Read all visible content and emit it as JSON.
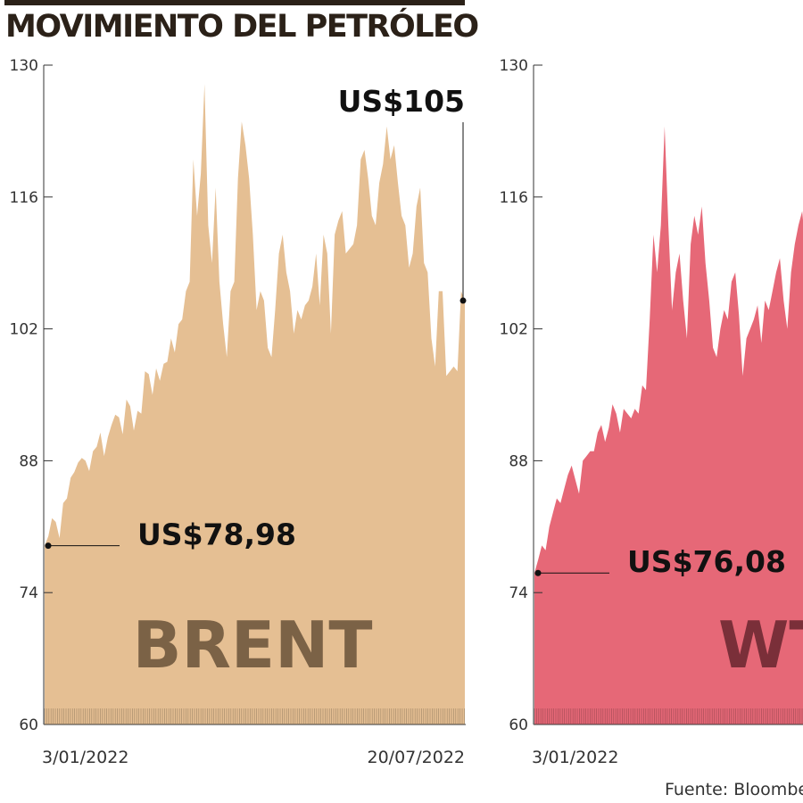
{
  "title": "MOVIMIENTO DEL PETRÓLEO",
  "source": "Fuente: Bloomberg",
  "chart_data": [
    {
      "type": "area",
      "name": "BRENT",
      "color": "#e5bf93",
      "label_color": "#7b6246",
      "ylim": [
        60,
        130
      ],
      "yticks": [
        "60",
        "74",
        "88",
        "102",
        "116",
        "130"
      ],
      "x_labels": [
        "3/01/2022",
        "20/07/2022"
      ],
      "callouts": [
        {
          "text": "US$78,98",
          "value": 78.98,
          "at": "start"
        },
        {
          "text": "US$105",
          "value": 105,
          "at": "end"
        }
      ],
      "values": [
        78.98,
        80.0,
        81.9,
        81.5,
        79.8,
        83.5,
        84.0,
        86.2,
        86.8,
        87.8,
        88.3,
        88.0,
        86.9,
        89.0,
        89.5,
        91.0,
        88.5,
        90.5,
        91.8,
        92.9,
        92.6,
        90.8,
        94.5,
        93.8,
        91.2,
        93.3,
        93.0,
        97.5,
        97.2,
        95.0,
        97.8,
        96.5,
        98.3,
        98.5,
        101.0,
        99.5,
        102.5,
        103.0,
        106.0,
        107.0,
        120.0,
        114.0,
        118.5,
        128.0,
        113.0,
        109.0,
        117.0,
        107.0,
        102.5,
        99.0,
        106.0,
        107.0,
        118.0,
        124.0,
        121.5,
        118.0,
        112.0,
        104.0,
        106.0,
        105.0,
        100.0,
        99.0,
        104.0,
        110.0,
        112.0,
        108.0,
        106.0,
        101.5,
        104.0,
        103.0,
        104.5,
        105.0,
        106.5,
        110.0,
        104.5,
        112.0,
        110.0,
        101.5,
        112.0,
        113.5,
        114.5,
        110.0,
        110.5,
        111.0,
        113.0,
        120.0,
        121.0,
        118.0,
        114.0,
        113.0,
        117.5,
        119.5,
        123.5,
        120.0,
        121.5,
        117.5,
        114.0,
        113.0,
        108.5,
        110.0,
        115.0,
        117.0,
        109.0,
        108.0,
        101.0,
        98.0,
        106.0,
        106.0,
        97.0,
        97.5,
        98.0,
        97.5,
        106.0,
        105.0
      ]
    },
    {
      "type": "area",
      "name": "WTI",
      "color": "#e66877",
      "label_color": "#7a2f39",
      "ylim": [
        60,
        130
      ],
      "yticks": [
        "60",
        "74",
        "88",
        "102",
        "116",
        "130"
      ],
      "x_labels": [
        "3/01/2022"
      ],
      "callouts": [
        {
          "text": "US$76,08",
          "value": 76.08,
          "at": "start"
        }
      ],
      "values": [
        76.08,
        77.5,
        79.0,
        78.5,
        81.0,
        82.5,
        84.0,
        83.5,
        85.0,
        86.5,
        87.5,
        86.0,
        84.5,
        88.0,
        88.5,
        89.0,
        89.0,
        91.0,
        91.8,
        90.0,
        91.5,
        94.0,
        93.0,
        91.0,
        93.5,
        93.0,
        92.5,
        93.5,
        93.0,
        96.0,
        95.5,
        103.0,
        112.0,
        108.0,
        113.0,
        123.5,
        113.0,
        104.0,
        108.0,
        110.0,
        105.0,
        101.0,
        111.0,
        114.0,
        112.0,
        115.0,
        109.0,
        105.0,
        100.0,
        99.0,
        102.0,
        104.0,
        103.0,
        107.0,
        108.0,
        103.5,
        97.0,
        101.0,
        102.0,
        103.0,
        104.5,
        100.5,
        105.0,
        104.0,
        106.0,
        108.0,
        109.5,
        105.0,
        102.0,
        108.0,
        111.0,
        113.0,
        114.5,
        110.0
      ]
    }
  ]
}
